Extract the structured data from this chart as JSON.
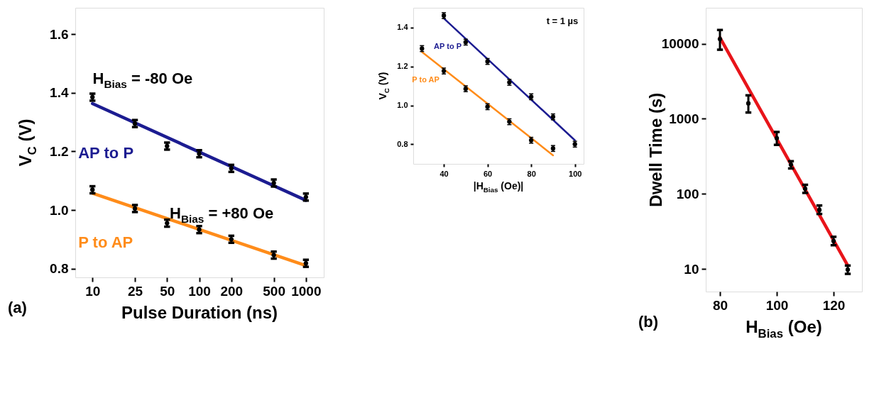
{
  "chart_data": [
    {
      "type": "scatter",
      "xlabel": "Pulse Duration (ns)",
      "ylabel": "V$_{C}$ (V)",
      "log": "x",
      "x": [
        10,
        25,
        50,
        100,
        200,
        500,
        1000
      ],
      "xlim": [
        6.9,
        1470
      ],
      "xticks": [
        10,
        25,
        50,
        100,
        200,
        500,
        1000
      ],
      "ylim": [
        0.77,
        1.69
      ],
      "yticks": [
        0.8,
        {
          "value": 1.0,
          "label": "1.0"
        },
        1.2,
        1.4,
        1.6
      ],
      "series": [
        {
          "color": "#000000",
          "marker": "circle",
          "values": [
            1.385,
            1.295,
            1.218,
            1.192,
            1.142,
            1.092,
            1.044
          ],
          "errors": [
            0.012,
            0.012,
            0.012,
            0.012,
            0.012,
            0.012,
            0.012
          ]
        },
        {
          "color": "#000000",
          "marker": "circle",
          "values": [
            1.069,
            1.005,
            0.955,
            0.933,
            0.9,
            0.846,
            0.818
          ],
          "errors": [
            0.012,
            0.012,
            0.012,
            0.012,
            0.012,
            0.012,
            0.012
          ]
        },
        {
          "type": "line",
          "name": "AP to P",
          "color": "#1c1c91",
          "x": [
            10,
            1000
          ],
          "values": [
            1.363,
            1.033
          ]
        },
        {
          "type": "line",
          "name": "P to AP",
          "color": "#ff8c1a",
          "x": [
            10,
            1000
          ],
          "values": [
            1.057,
            0.81
          ]
        }
      ],
      "annotations": [
        "(a)",
        "H$_{Bias}$ = -80 Oe",
        "H$_{Bias}$ = +80 Oe"
      ]
    },
    {
      "type": "scatter",
      "xlabel": "|H$_{Bias}$ (Oe)|",
      "ylabel": "V$_{C}$ (V)",
      "xlim": [
        26,
        104
      ],
      "xticks": [
        40,
        60,
        80,
        100
      ],
      "ylim": [
        0.7,
        1.5
      ],
      "yticks": [
        0.8,
        {
          "value": 1.0,
          "label": "1.0"
        },
        1.2,
        1.4
      ],
      "series": [
        {
          "color": "#000000",
          "marker": "circle",
          "x": [
            40,
            50,
            60,
            70,
            80,
            90,
            100
          ],
          "values": [
            1.46,
            1.324,
            1.225,
            1.118,
            1.044,
            0.941,
            0.801
          ],
          "errors": [
            0.015,
            0.015,
            0.015,
            0.015,
            0.015,
            0.015,
            0.015
          ]
        },
        {
          "color": "#000000",
          "marker": "circle",
          "x": [
            30,
            40,
            50,
            60,
            70,
            80,
            90
          ],
          "values": [
            1.291,
            1.176,
            1.085,
            0.993,
            0.916,
            0.821,
            0.779
          ],
          "errors": [
            0.015,
            0.015,
            0.015,
            0.015,
            0.015,
            0.015,
            0.015
          ]
        },
        {
          "type": "line",
          "name": "AP to P",
          "color": "#1c1c91",
          "x": [
            40,
            100
          ],
          "values": [
            1.446,
            0.821
          ]
        },
        {
          "type": "line",
          "name": "P to AP",
          "color": "#ff8c1a",
          "x": [
            30,
            90
          ],
          "values": [
            1.274,
            0.744
          ]
        }
      ],
      "annotations": [
        "t = 1 µs"
      ]
    },
    {
      "type": "scatter",
      "xlabel": "H$_{Bias}$ (Oe)",
      "ylabel": "Dwell Time (s)",
      "log": "y",
      "xlim": [
        75,
        130
      ],
      "xticks": [
        80,
        100,
        120
      ],
      "ylim": [
        5,
        30000
      ],
      "yticks": [
        10,
        100,
        1000,
        10000
      ],
      "series": [
        {
          "color": "#000000",
          "marker": "circle",
          "x": [
            80,
            90,
            100,
            105,
            110,
            115,
            120,
            125
          ],
          "values": [
            11500,
            1600,
            550,
            245,
            117,
            61,
            23.5,
            9.8
          ],
          "errors": [
            [
              8300,
              15200
            ],
            [
              1210,
              2050
            ],
            [
              449,
              667
            ],
            [
              218,
              272
            ],
            [
              103,
              132
            ],
            [
              54,
              70
            ],
            [
              20.7,
              26.8
            ],
            [
              8.6,
              11.1
            ]
          ]
        },
        {
          "type": "line",
          "color": "#e8141a",
          "x": [
            80,
            125
          ],
          "values": [
            12000,
            11.1
          ]
        }
      ],
      "annotations": [
        "(b)"
      ]
    }
  ]
}
